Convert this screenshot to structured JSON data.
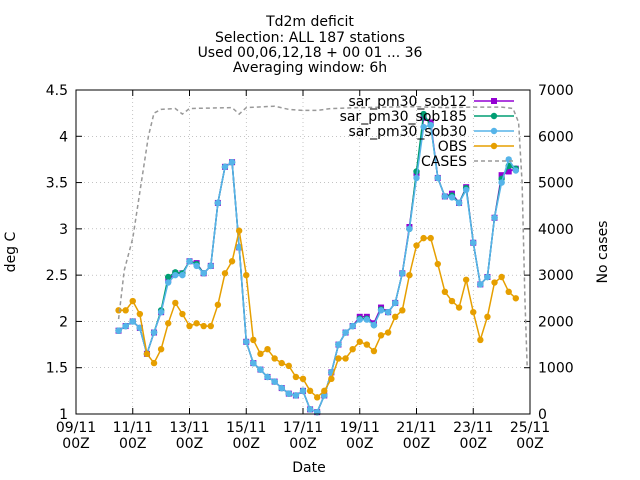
{
  "chart_data": {
    "type": "line",
    "title_lines": [
      "Td2m deficit",
      "Selection: ALL     187 stations",
      "Used 00,06,12,18 + 00 01 ... 36",
      "Averaging window:  6h"
    ],
    "xlabel": "Date",
    "ylabel": "deg C",
    "y2label": "No cases",
    "xlim": [
      0,
      16
    ],
    "ylim": [
      1,
      4.5
    ],
    "y2lim": [
      0,
      7000
    ],
    "xticks": [
      {
        "x": 0,
        "l1": "09/11",
        "l2": "00Z"
      },
      {
        "x": 2,
        "l1": "11/11",
        "l2": "00Z"
      },
      {
        "x": 4,
        "l1": "13/11",
        "l2": "00Z"
      },
      {
        "x": 6,
        "l1": "15/11",
        "l2": "00Z"
      },
      {
        "x": 8,
        "l1": "17/11",
        "l2": "00Z"
      },
      {
        "x": 10,
        "l1": "19/11",
        "l2": "00Z"
      },
      {
        "x": 12,
        "l1": "21/11",
        "l2": "00Z"
      },
      {
        "x": 14,
        "l1": "23/11",
        "l2": "00Z"
      },
      {
        "x": 16,
        "l1": "25/11",
        "l2": "00Z"
      }
    ],
    "yticks": [
      1,
      1.5,
      2,
      2.5,
      3,
      3.5,
      4,
      4.5
    ],
    "y2ticks": [
      0,
      1000,
      2000,
      3000,
      4000,
      5000,
      6000,
      7000
    ],
    "x_start": 1.5,
    "x_step": 0.25,
    "legend_position": "top-right",
    "series": [
      {
        "name": "sar_pm30_sob12",
        "color": "#9400d3",
        "marker": "square",
        "axis": "y",
        "values": [
          1.9,
          1.95,
          2.0,
          1.93,
          1.65,
          1.88,
          2.1,
          2.45,
          2.52,
          2.52,
          2.65,
          2.63,
          2.52,
          2.6,
          3.28,
          3.67,
          3.72,
          2.8,
          1.78,
          1.55,
          1.48,
          1.4,
          1.35,
          1.28,
          1.22,
          1.2,
          1.25,
          1.05,
          1.02,
          1.2,
          1.45,
          1.75,
          1.88,
          1.95,
          2.05,
          2.05,
          1.98,
          2.15,
          2.1,
          2.2,
          2.52,
          3.02,
          3.6,
          4.2,
          4.15,
          3.55,
          3.35,
          3.38,
          3.28,
          3.45,
          2.85,
          2.4,
          2.48,
          3.12,
          3.58,
          3.62,
          3.65
        ]
      },
      {
        "name": "sar_pm30_sob185",
        "color": "#009e73",
        "marker": "circle",
        "axis": "y",
        "values": [
          1.9,
          1.95,
          2.0,
          1.93,
          1.65,
          1.88,
          2.12,
          2.48,
          2.53,
          2.52,
          2.65,
          2.62,
          2.52,
          2.6,
          3.28,
          3.67,
          3.72,
          2.8,
          1.78,
          1.55,
          1.48,
          1.4,
          1.35,
          1.28,
          1.22,
          1.2,
          1.25,
          1.05,
          1.02,
          1.2,
          1.45,
          1.75,
          1.88,
          1.95,
          2.03,
          2.03,
          1.96,
          2.13,
          2.1,
          2.2,
          2.52,
          3.0,
          3.62,
          4.24,
          4.12,
          3.55,
          3.35,
          3.36,
          3.28,
          3.44,
          2.85,
          2.4,
          2.48,
          3.12,
          3.54,
          3.68,
          3.65
        ]
      },
      {
        "name": "sar_pm30_sob30",
        "color": "#56b4e9",
        "marker": "circle",
        "axis": "y",
        "values": [
          1.9,
          1.95,
          2.0,
          1.93,
          1.65,
          1.88,
          2.1,
          2.42,
          2.5,
          2.5,
          2.65,
          2.6,
          2.52,
          2.6,
          3.28,
          3.67,
          3.72,
          2.8,
          1.78,
          1.55,
          1.48,
          1.4,
          1.35,
          1.28,
          1.22,
          1.2,
          1.25,
          1.05,
          1.02,
          1.2,
          1.45,
          1.75,
          1.88,
          1.95,
          2.02,
          2.02,
          1.96,
          2.12,
          2.1,
          2.2,
          2.52,
          3.0,
          3.55,
          4.1,
          4.12,
          3.55,
          3.35,
          3.34,
          3.28,
          3.42,
          2.85,
          2.4,
          2.48,
          3.12,
          3.5,
          3.75,
          3.63
        ]
      },
      {
        "name": "OBS",
        "color": "#e69f00",
        "marker": "circle",
        "axis": "y",
        "values": [
          2.12,
          2.12,
          2.22,
          2.08,
          1.65,
          1.55,
          1.7,
          1.98,
          2.2,
          2.08,
          1.95,
          1.98,
          1.95,
          1.95,
          2.18,
          2.52,
          2.65,
          2.98,
          2.5,
          1.8,
          1.65,
          1.7,
          1.6,
          1.55,
          1.52,
          1.4,
          1.38,
          1.25,
          1.18,
          1.25,
          1.38,
          1.6,
          1.6,
          1.7,
          1.78,
          1.75,
          1.68,
          1.85,
          1.88,
          2.05,
          2.12,
          2.5,
          2.82,
          2.9,
          2.9,
          2.62,
          2.32,
          2.22,
          2.15,
          2.45,
          2.1,
          1.8,
          2.05,
          2.42,
          2.48,
          2.32,
          2.25
        ]
      },
      {
        "name": "CASES",
        "color": "#999999",
        "dashed": true,
        "axis": "y2",
        "points": [
          [
            1.5,
            2050
          ],
          [
            1.7,
            3100
          ],
          [
            2.0,
            3800
          ],
          [
            2.3,
            5000
          ],
          [
            2.55,
            6000
          ],
          [
            2.75,
            6500
          ],
          [
            3.0,
            6580
          ],
          [
            3.5,
            6600
          ],
          [
            3.75,
            6480
          ],
          [
            4.0,
            6600
          ],
          [
            5.5,
            6620
          ],
          [
            5.75,
            6480
          ],
          [
            6.0,
            6620
          ],
          [
            7.0,
            6650
          ],
          [
            7.5,
            6580
          ],
          [
            8.0,
            6560
          ],
          [
            8.5,
            6560
          ],
          [
            9.0,
            6600
          ],
          [
            10.0,
            6620
          ],
          [
            11.0,
            6630
          ],
          [
            12.0,
            6640
          ],
          [
            13.0,
            6620
          ],
          [
            14.0,
            6630
          ],
          [
            15.0,
            6630
          ],
          [
            15.4,
            6600
          ],
          [
            15.6,
            6300
          ],
          [
            15.72,
            5000
          ],
          [
            15.82,
            2500
          ],
          [
            15.9,
            1000
          ]
        ]
      }
    ]
  }
}
